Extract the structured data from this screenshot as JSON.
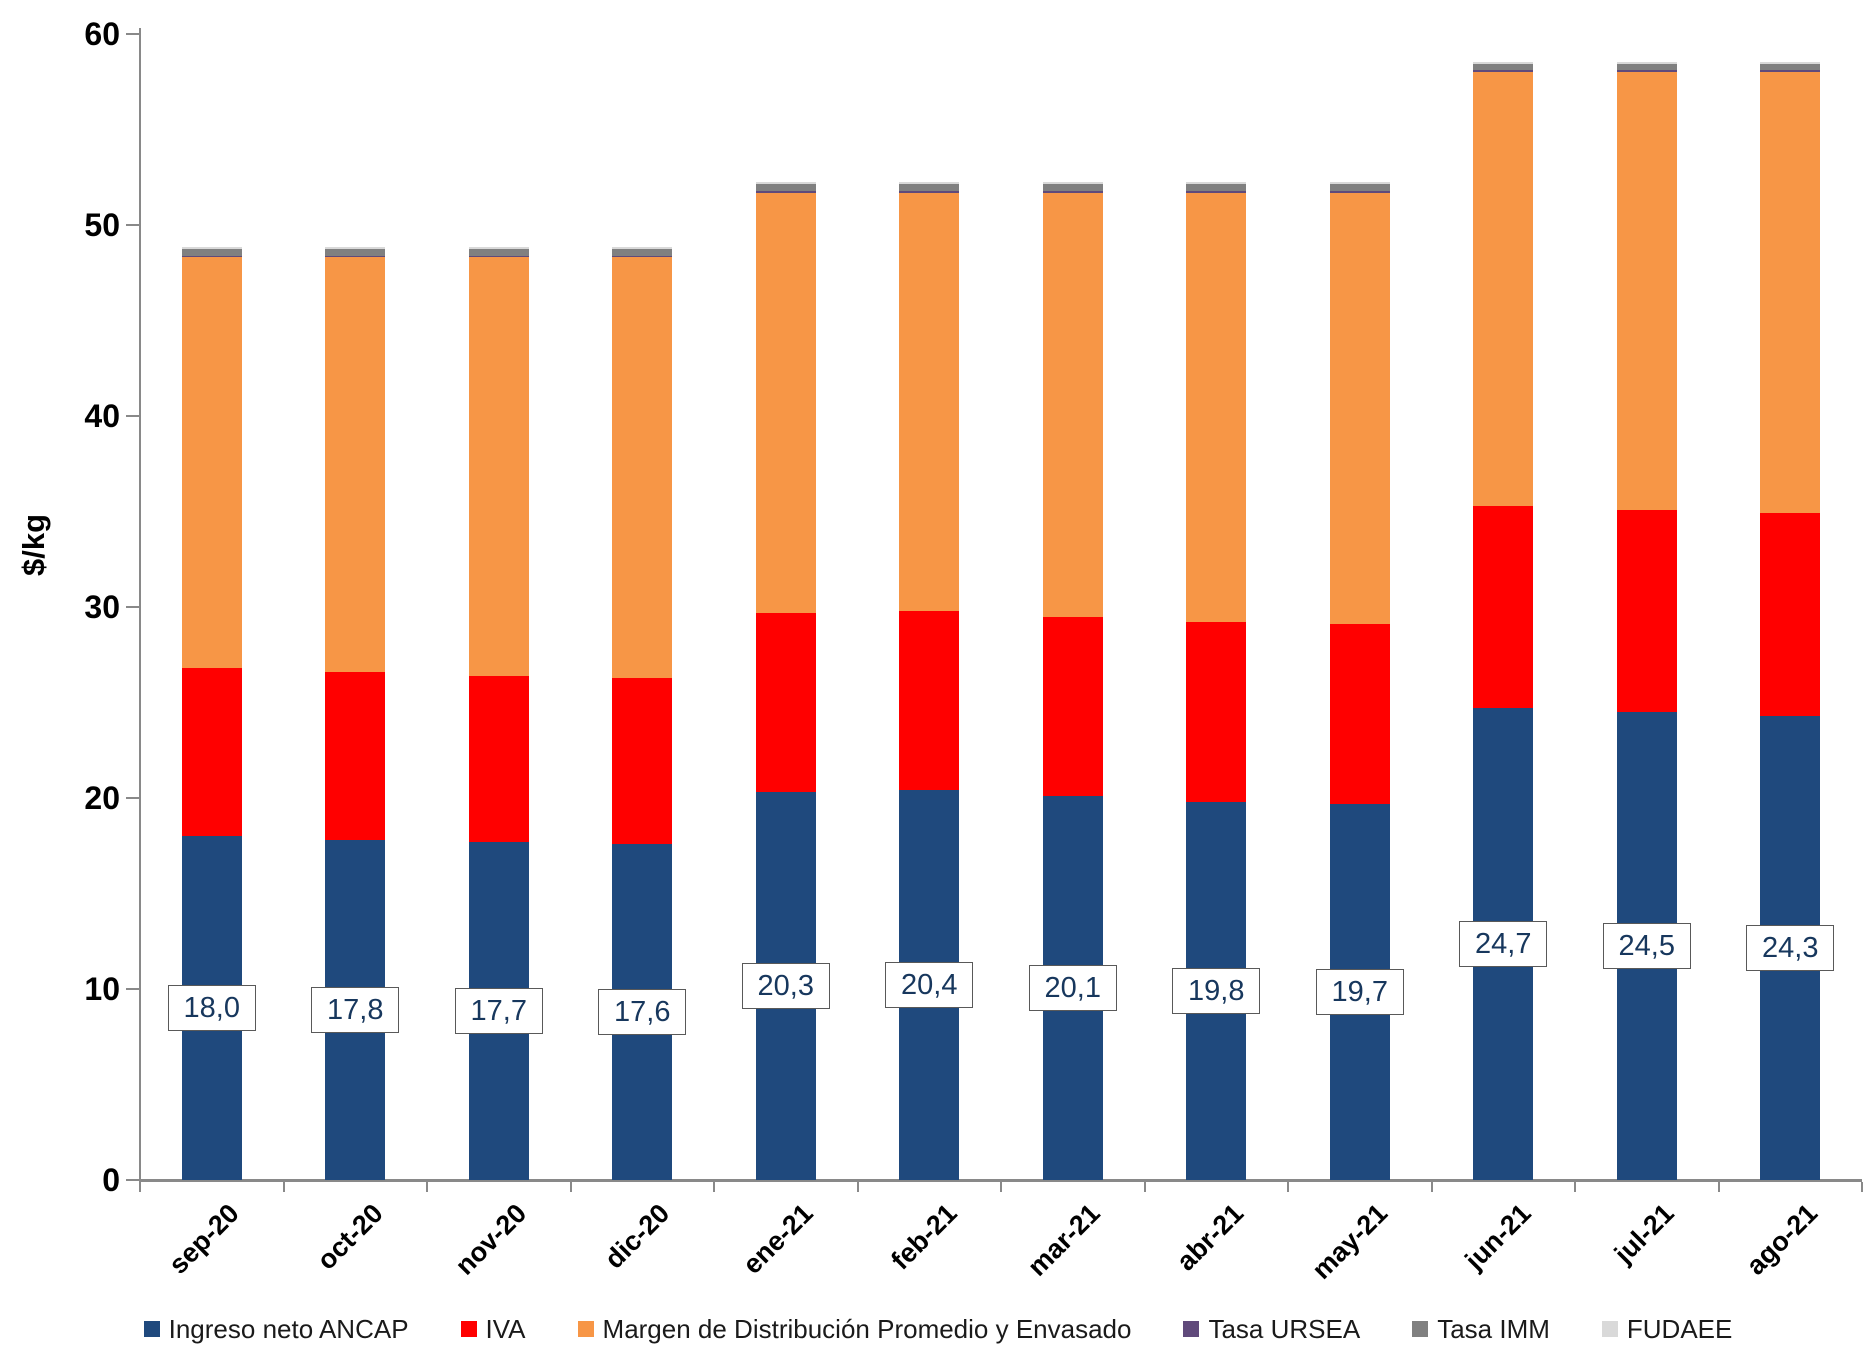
{
  "y_axis": {
    "title": "$/kg",
    "ticks": [
      0,
      10,
      20,
      30,
      40,
      50,
      60
    ],
    "max": 60
  },
  "chart_data": {
    "type": "bar",
    "stacked": true,
    "title": "",
    "xlabel": "",
    "ylabel": "$/kg",
    "ylim": [
      0,
      60
    ],
    "grid": false,
    "legend_position": "bottom",
    "categories": [
      "sep-20",
      "oct-20",
      "nov-20",
      "dic-20",
      "ene-21",
      "feb-21",
      "mar-21",
      "abr-21",
      "may-21",
      "jun-21",
      "jul-21",
      "ago-21"
    ],
    "series": [
      {
        "name": "Ingreso neto ANCAP",
        "color": "#1F497D",
        "values": [
          18.0,
          17.8,
          17.7,
          17.6,
          20.3,
          20.4,
          20.1,
          19.8,
          19.7,
          24.7,
          24.5,
          24.3
        ]
      },
      {
        "name": "IVA",
        "color": "#FF0000",
        "values": [
          8.8,
          8.8,
          8.7,
          8.7,
          9.4,
          9.4,
          9.4,
          9.4,
          9.4,
          10.6,
          10.6,
          10.6
        ]
      },
      {
        "name": "Margen de Distribución Promedio y Envasado",
        "color": "#F79646",
        "values": [
          21.5,
          21.7,
          21.9,
          22.0,
          22.0,
          21.9,
          22.2,
          22.5,
          22.6,
          22.7,
          22.9,
          23.1
        ]
      },
      {
        "name": "Tasa URSEA",
        "color": "#604A7B",
        "values": [
          0.1,
          0.1,
          0.1,
          0.1,
          0.1,
          0.1,
          0.1,
          0.1,
          0.1,
          0.1,
          0.1,
          0.1
        ]
      },
      {
        "name": "Tasa IMM",
        "color": "#808080",
        "values": [
          0.35,
          0.35,
          0.35,
          0.35,
          0.35,
          0.35,
          0.35,
          0.35,
          0.35,
          0.35,
          0.35,
          0.35
        ]
      },
      {
        "name": "FUDAEE",
        "color": "#D9D9D9",
        "values": [
          0.08,
          0.08,
          0.08,
          0.08,
          0.08,
          0.08,
          0.08,
          0.08,
          0.08,
          0.08,
          0.08,
          0.08
        ]
      }
    ],
    "data_labels": {
      "on_series": "Ingreso neto ANCAP",
      "values": [
        "18,0",
        "17,8",
        "17,7",
        "17,6",
        "20,3",
        "20,4",
        "20,1",
        "19,8",
        "19,7",
        "24,7",
        "24,5",
        "24,3"
      ]
    }
  }
}
